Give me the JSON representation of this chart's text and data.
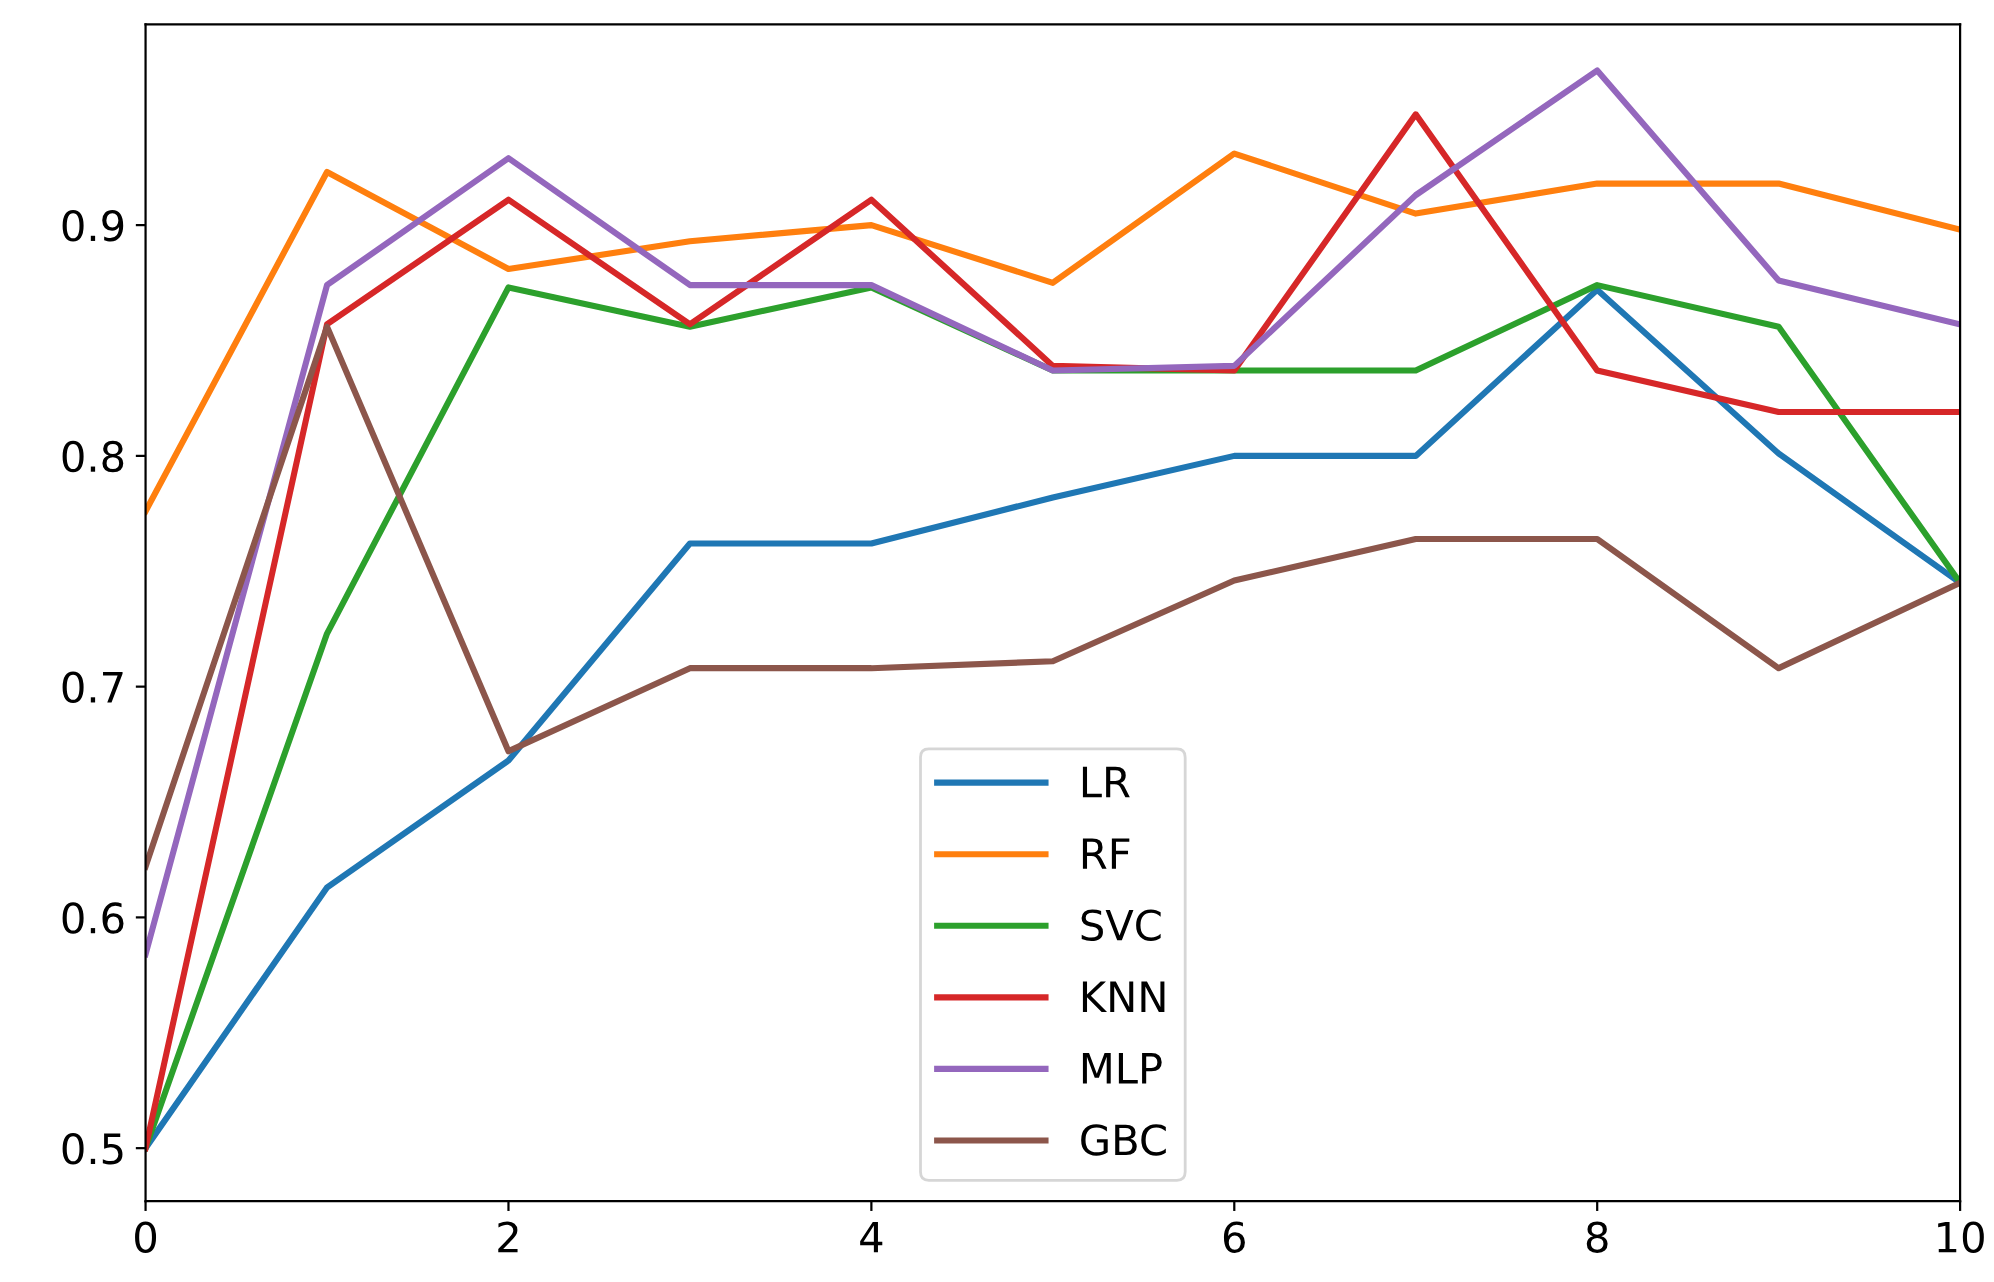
{
  "chart_data": {
    "type": "line",
    "x": [
      0,
      1,
      2,
      3,
      4,
      5,
      6,
      7,
      8,
      9,
      10
    ],
    "series": [
      {
        "name": "LR",
        "color": "#1f77b4",
        "values": [
          0.5,
          0.613,
          0.668,
          0.762,
          0.762,
          0.782,
          0.8,
          0.8,
          0.872,
          0.801,
          0.745
        ]
      },
      {
        "name": "RF",
        "color": "#ff7f0e",
        "values": [
          0.776,
          0.923,
          0.881,
          0.893,
          0.9,
          0.875,
          0.931,
          0.905,
          0.918,
          0.918,
          0.898
        ]
      },
      {
        "name": "SVC",
        "color": "#2ca02c",
        "values": [
          0.5,
          0.723,
          0.873,
          0.856,
          0.873,
          0.837,
          0.837,
          0.837,
          0.874,
          0.856,
          0.745
        ]
      },
      {
        "name": "KNN",
        "color": "#d62728",
        "values": [
          0.5,
          0.857,
          0.911,
          0.857,
          0.911,
          0.839,
          0.837,
          0.948,
          0.837,
          0.819,
          0.819
        ]
      },
      {
        "name": "MLP",
        "color": "#9467bd",
        "values": [
          0.584,
          0.874,
          0.929,
          0.874,
          0.874,
          0.837,
          0.839,
          0.913,
          0.967,
          0.876,
          0.857
        ]
      },
      {
        "name": "GBC",
        "color": "#8c564b",
        "values": [
          0.622,
          0.856,
          0.672,
          0.708,
          0.708,
          0.711,
          0.746,
          0.764,
          0.764,
          0.708,
          0.745
        ]
      }
    ],
    "xlim": [
      0,
      10
    ],
    "xticks": [
      0,
      2,
      4,
      6,
      8,
      10
    ],
    "ylim": [
      0.477,
      0.987
    ],
    "yticks": [
      0.5,
      0.6,
      0.7,
      0.8,
      0.9
    ],
    "legend": "bottom",
    "grid": false,
    "marker": "none",
    "line_style": "solid"
  }
}
